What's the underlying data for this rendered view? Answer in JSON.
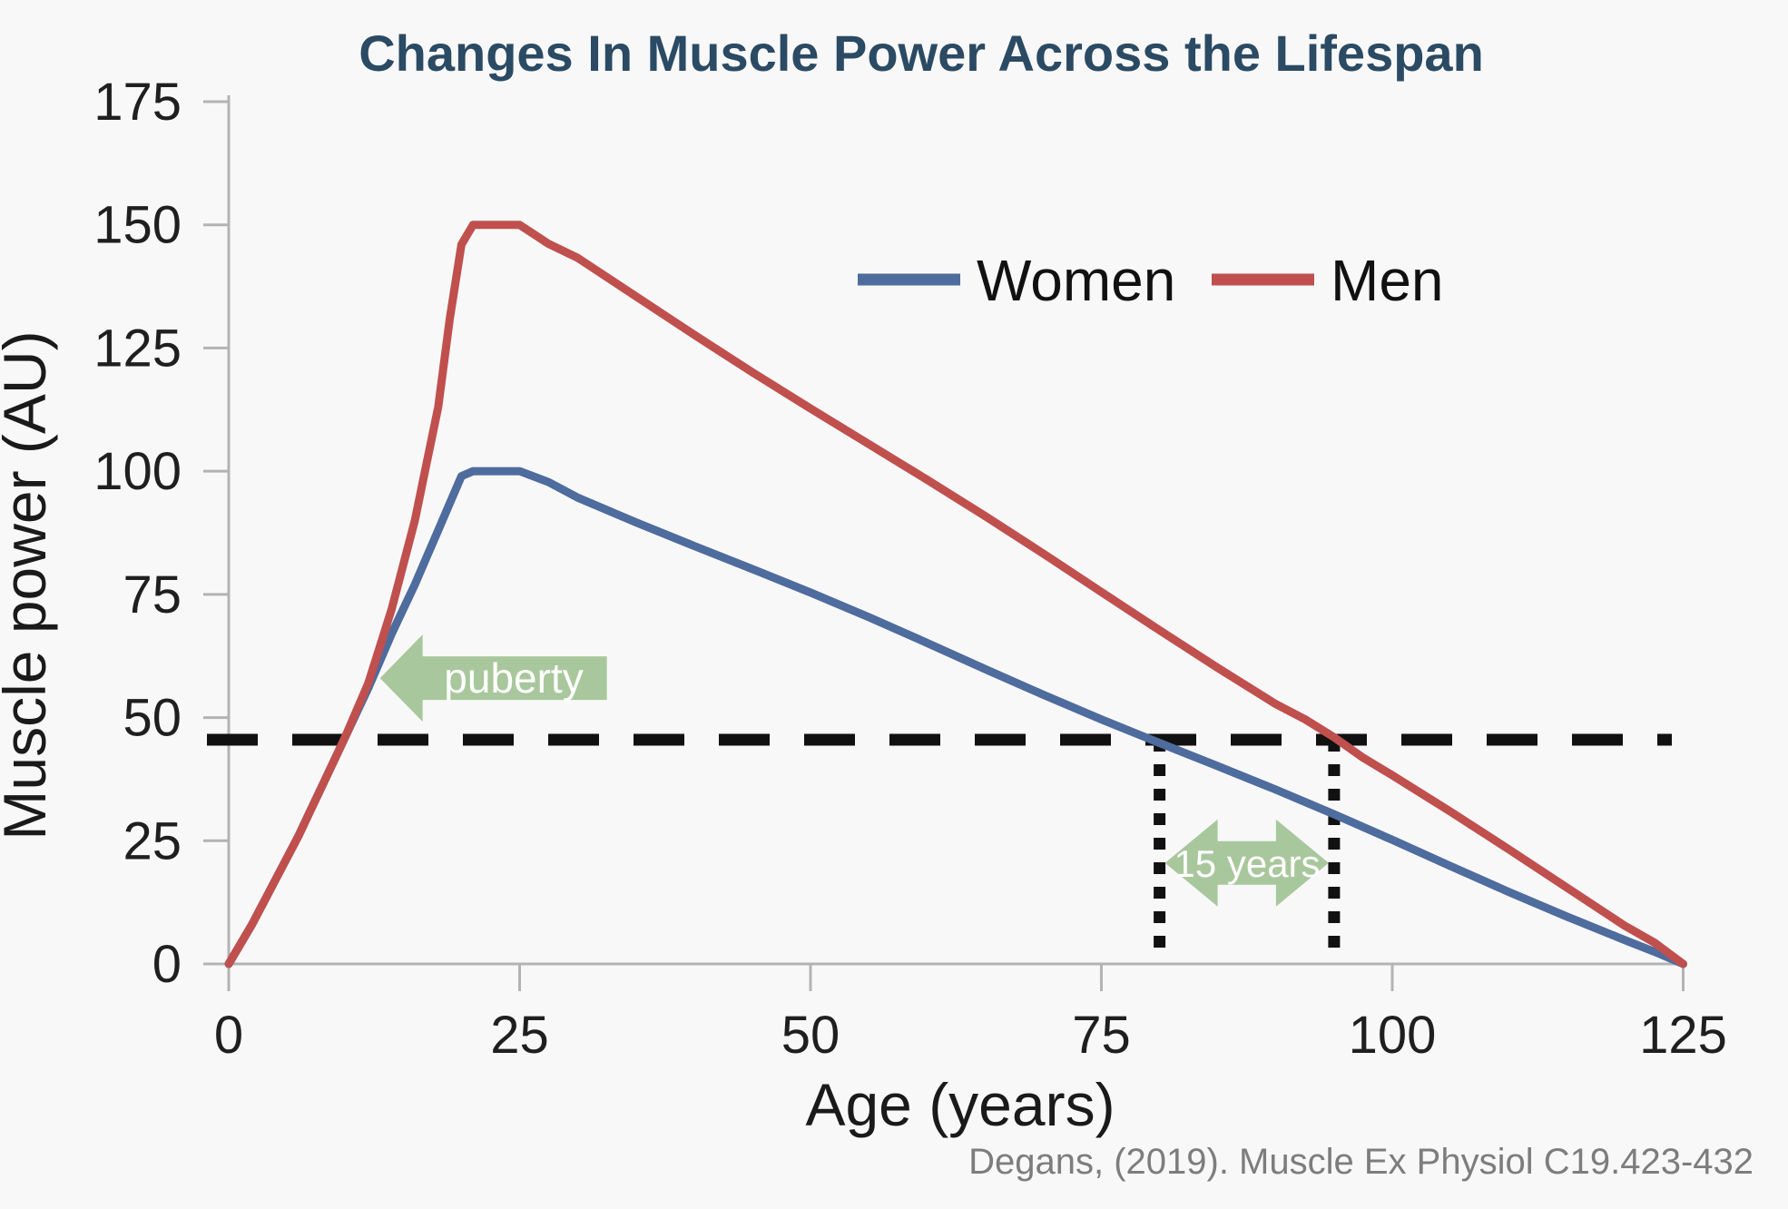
{
  "title": "Changes In Muscle Power Across the Lifespan",
  "citation": "Degans, (2019). Muscle Ex Physiol C19.423-432",
  "colors": {
    "background": "#f8f8f9",
    "title": "#2b4a63",
    "axis": "#b3b3b3",
    "tick_text": "#1f1f1f",
    "women_line": "#4e6c9d",
    "men_line": "#c0504d",
    "dashed_line": "#111111",
    "annotation_green": "#a9c79c",
    "annotation_text": "#ffffff",
    "citation_text": "#7d7d7d"
  },
  "chart_data": {
    "type": "line",
    "title": "Changes In Muscle Power Across the Lifespan",
    "xlabel": "Age (years)",
    "ylabel": "Muscle power (AU)",
    "xlim": [
      0,
      125
    ],
    "ylim": [
      0,
      175
    ],
    "x_ticks": [
      0,
      25,
      50,
      75,
      100,
      125
    ],
    "y_ticks": [
      0,
      25,
      50,
      75,
      100,
      125,
      150,
      175
    ],
    "grid": false,
    "legend_position": "top-right-inside",
    "series": [
      {
        "name": "Women",
        "color": "#4e6c9d",
        "peak": {
          "age_range": [
            21,
            25
          ],
          "value": 100
        },
        "points": [
          [
            0,
            0
          ],
          [
            2,
            8
          ],
          [
            4,
            17
          ],
          [
            6,
            26
          ],
          [
            8,
            36
          ],
          [
            10,
            46
          ],
          [
            12,
            56
          ],
          [
            14,
            67
          ],
          [
            16,
            77
          ],
          [
            18,
            88
          ],
          [
            20,
            99
          ],
          [
            21,
            100
          ],
          [
            25,
            100
          ],
          [
            30,
            95
          ],
          [
            40,
            85
          ],
          [
            50,
            75
          ],
          [
            60,
            65
          ],
          [
            70,
            55
          ],
          [
            80,
            45
          ],
          [
            90,
            35
          ],
          [
            100,
            25
          ],
          [
            110,
            15
          ],
          [
            120,
            5
          ],
          [
            125,
            0
          ]
        ]
      },
      {
        "name": "Men",
        "color": "#c0504d",
        "peak": {
          "age_range": [
            21,
            25
          ],
          "value": 150
        },
        "points": [
          [
            0,
            0
          ],
          [
            2,
            8
          ],
          [
            4,
            17
          ],
          [
            6,
            26
          ],
          [
            8,
            36
          ],
          [
            10,
            46
          ],
          [
            12,
            57
          ],
          [
            14,
            72
          ],
          [
            16,
            90
          ],
          [
            18,
            113
          ],
          [
            19,
            131
          ],
          [
            20,
            146
          ],
          [
            21,
            150
          ],
          [
            25,
            150
          ],
          [
            30,
            143
          ],
          [
            40,
            128
          ],
          [
            50,
            113
          ],
          [
            60,
            98
          ],
          [
            70,
            83
          ],
          [
            80,
            68
          ],
          [
            90,
            53
          ],
          [
            95,
            46
          ],
          [
            100,
            38
          ],
          [
            110,
            23
          ],
          [
            120,
            8
          ],
          [
            125,
            0
          ]
        ]
      }
    ],
    "annotations": {
      "threshold_line": {
        "style": "dashed",
        "y": 45.5,
        "x_from": -2,
        "x_to": 124,
        "color": "#111111"
      },
      "dotted_vertical_lines": {
        "x": [
          80,
          95
        ],
        "y_from": 0,
        "y_to": 45.5,
        "meaning": "ages where Women and Men cross the threshold"
      },
      "puberty_arrow": {
        "label": "puberty",
        "direction": "left",
        "points_at": {
          "age": 13,
          "value": 58
        },
        "body_to_age": 32.5,
        "color": "#a9c79c"
      },
      "span_arrow": {
        "label": "15 years",
        "direction": "double-horizontal",
        "from_age": 80,
        "to_age": 95,
        "at_value": 20.5,
        "color": "#a9c79c"
      }
    }
  }
}
